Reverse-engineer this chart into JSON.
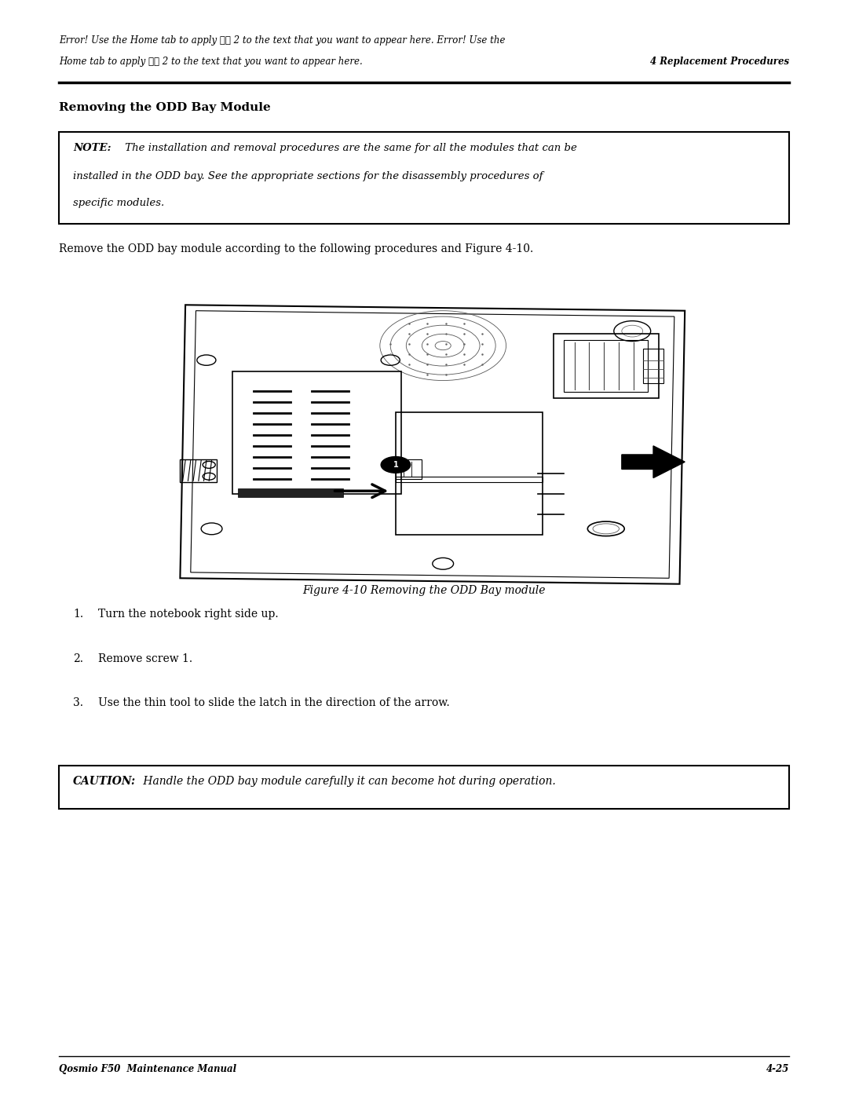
{
  "page_width": 10.8,
  "page_height": 13.97,
  "bg_color": "#ffffff",
  "header_line1": "Error! Use the Home tab to apply 標題 2 to the text that you want to appear here. Error! Use the",
  "header_line2": "Home tab to apply 標題 2 to the text that you want to appear here.",
  "header_right": "4 Replacement Procedures",
  "section_title": "Removing the ODD Bay Module",
  "note_label": "NOTE:",
  "note_line1": " The installation and removal procedures are the same for all the modules that can be",
  "note_line2": "installed in the ODD bay. See the appropriate sections for the disassembly procedures of",
  "note_line3": "specific modules.",
  "body_text": "Remove the ODD bay module according to the following procedures and Figure 4-10.",
  "figure_caption": "Figure 4-10 Removing the ODD Bay module",
  "step1": "Turn the notebook right side up.",
  "step2": "Remove screw 1.",
  "step3": "Use the thin tool to slide the latch in the direction of the arrow.",
  "caution_label": "CAUTION:",
  "caution_text": " Handle the ODD bay module carefully it can become hot during operation.",
  "footer_left": "Qosmio F50  Maintenance Manual",
  "footer_right": "4-25",
  "text_color": "#000000"
}
